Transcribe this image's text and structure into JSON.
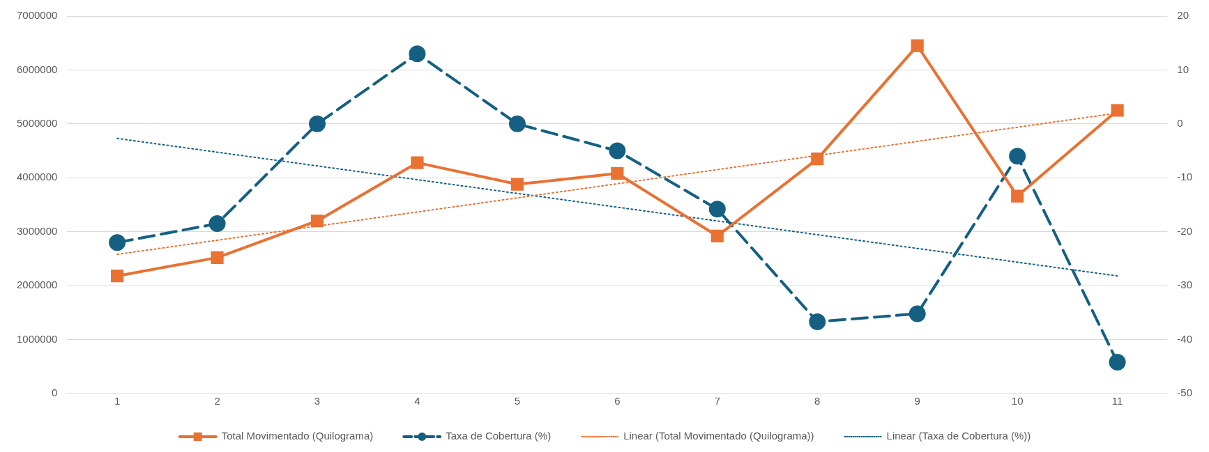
{
  "chart_data": {
    "type": "line",
    "x": [
      1,
      2,
      3,
      4,
      5,
      6,
      7,
      8,
      9,
      10,
      11
    ],
    "xlim": [
      0.5,
      11.5
    ],
    "xticks": [
      1,
      2,
      3,
      4,
      5,
      6,
      7,
      8,
      9,
      10,
      11
    ],
    "ylim": [
      0,
      7000000
    ],
    "yticks": [
      0,
      1000000,
      2000000,
      3000000,
      4000000,
      5000000,
      6000000,
      7000000
    ],
    "y2lim": [
      -50,
      20
    ],
    "y2ticks": [
      -50,
      -40,
      -30,
      -20,
      -10,
      0,
      10,
      20
    ],
    "grid": "y",
    "legend": "bottom",
    "series": [
      {
        "name": "Total Movimentado (Quilograma)",
        "color": "#e97132",
        "marker": "square",
        "line_style": "solid",
        "values": [
          2180000,
          2520000,
          3200000,
          4280000,
          3880000,
          4080000,
          2920000,
          4350000,
          6450000,
          3660000,
          5250000
        ]
      },
      {
        "name": "Taxa de Cobertura (%)",
        "color": "#156082",
        "marker": "circle",
        "line_style": "dashed",
        "axis": "y2",
        "values": [
          -22,
          -18.5,
          0,
          13,
          0,
          -5,
          -15.8,
          -36.7,
          -35.2,
          -6,
          -44.2
        ]
      },
      {
        "name": "Linear (Total Movimentado (Quilograma))",
        "type": "line",
        "color": "#e97132",
        "marker": "none",
        "line_style": "dotted",
        "values": [
          2580000,
          2842000,
          3104000,
          3366000,
          3628000,
          3890000,
          4152000,
          4414000,
          4676000,
          4938000,
          5200000
        ]
      },
      {
        "name": "Linear (Taxa de Cobertura (%))",
        "type": "line",
        "color": "#156082",
        "marker": "none",
        "line_style": "dotted",
        "axis": "y2",
        "values": [
          -2.7,
          -5.25,
          -7.8,
          -10.35,
          -12.9,
          -15.45,
          -18,
          -20.55,
          -23.1,
          -25.65,
          -28.2
        ]
      }
    ]
  }
}
